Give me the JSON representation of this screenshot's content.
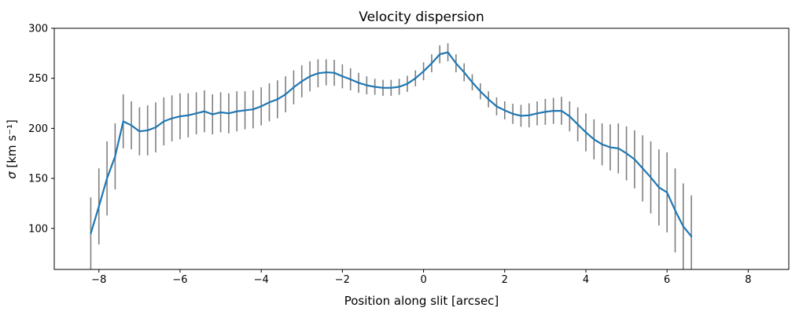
{
  "chart_data": {
    "type": "line",
    "title": "Velocity dispersion",
    "xlabel": "Position along slit [arcsec]",
    "ylabel": "σ [km s⁻¹]",
    "ylabel_sigma": "σ",
    "ylabel_units": " [km s⁻¹]",
    "xlim": [
      -9.1,
      9.0
    ],
    "ylim": [
      59,
      300
    ],
    "grid": false,
    "legend": "none",
    "x": [
      -8.2,
      -8.0,
      -7.8,
      -7.6,
      -7.4,
      -7.2,
      -7.0,
      -6.8,
      -6.6,
      -6.4,
      -6.2,
      -6.0,
      -5.8,
      -5.6,
      -5.4,
      -5.2,
      -5.0,
      -4.8,
      -4.6,
      -4.4,
      -4.2,
      -4.0,
      -3.8,
      -3.6,
      -3.4,
      -3.2,
      -3.0,
      -2.8,
      -2.6,
      -2.4,
      -2.2,
      -2.0,
      -1.8,
      -1.6,
      -1.4,
      -1.2,
      -1.0,
      -0.8,
      -0.6,
      -0.4,
      -0.2,
      0.0,
      0.2,
      0.4,
      0.6,
      0.8,
      1.0,
      1.2,
      1.4,
      1.6,
      1.8,
      2.0,
      2.2,
      2.4,
      2.6,
      2.8,
      3.0,
      3.2,
      3.4,
      3.6,
      3.8,
      4.0,
      4.2,
      4.4,
      4.6,
      4.8,
      5.0,
      5.2,
      5.4,
      5.6,
      5.8,
      6.0,
      6.2,
      6.4,
      6.6
    ],
    "series": [
      {
        "values": [
          95,
          122,
          150,
          172,
          207,
          203,
          197,
          198,
          201,
          207,
          210,
          212,
          213,
          215,
          217,
          214,
          216,
          215,
          217,
          218,
          219,
          222,
          226,
          229,
          234,
          241,
          247,
          252,
          255,
          256,
          255.5,
          252,
          249,
          245.5,
          243,
          241.5,
          240.5,
          240.5,
          241.5,
          244.5,
          250,
          257,
          265,
          274,
          276,
          265,
          256,
          246,
          237,
          229,
          222,
          218,
          214.5,
          212.5,
          213,
          215,
          216.5,
          217.5,
          217.5,
          212,
          204,
          196,
          189,
          184,
          181,
          180,
          175,
          169,
          160,
          151,
          141,
          136,
          118,
          102,
          92
        ],
        "errors": [
          36,
          38,
          37,
          33,
          27,
          24,
          24,
          25,
          25,
          24,
          23,
          23,
          22,
          21,
          21,
          20,
          20,
          20,
          20,
          19,
          19,
          19,
          19,
          19,
          18,
          17,
          16,
          15,
          14,
          13,
          13,
          12,
          11,
          10,
          9,
          8,
          8,
          8,
          8,
          8,
          8,
          9,
          9,
          9,
          9,
          9,
          9,
          8,
          8,
          8,
          9,
          9,
          10,
          11,
          12,
          12,
          13,
          13,
          14,
          15,
          17,
          19,
          20,
          21,
          23,
          25,
          27,
          29,
          33,
          36,
          38,
          40,
          42,
          43,
          41
        ],
        "line_color": "#1f77b4",
        "errorbar_color": "#7f7f7f"
      }
    ],
    "xticks": {
      "values": [
        -8,
        -6,
        -4,
        -2,
        0,
        2,
        4,
        6,
        8
      ],
      "labels": [
        "−8",
        "−6",
        "−4",
        "−2",
        "0",
        "2",
        "4",
        "6",
        "8"
      ]
    },
    "yticks": {
      "values": [
        100,
        150,
        200,
        250,
        300
      ],
      "labels": [
        "100",
        "150",
        "200",
        "250",
        "300"
      ]
    }
  }
}
